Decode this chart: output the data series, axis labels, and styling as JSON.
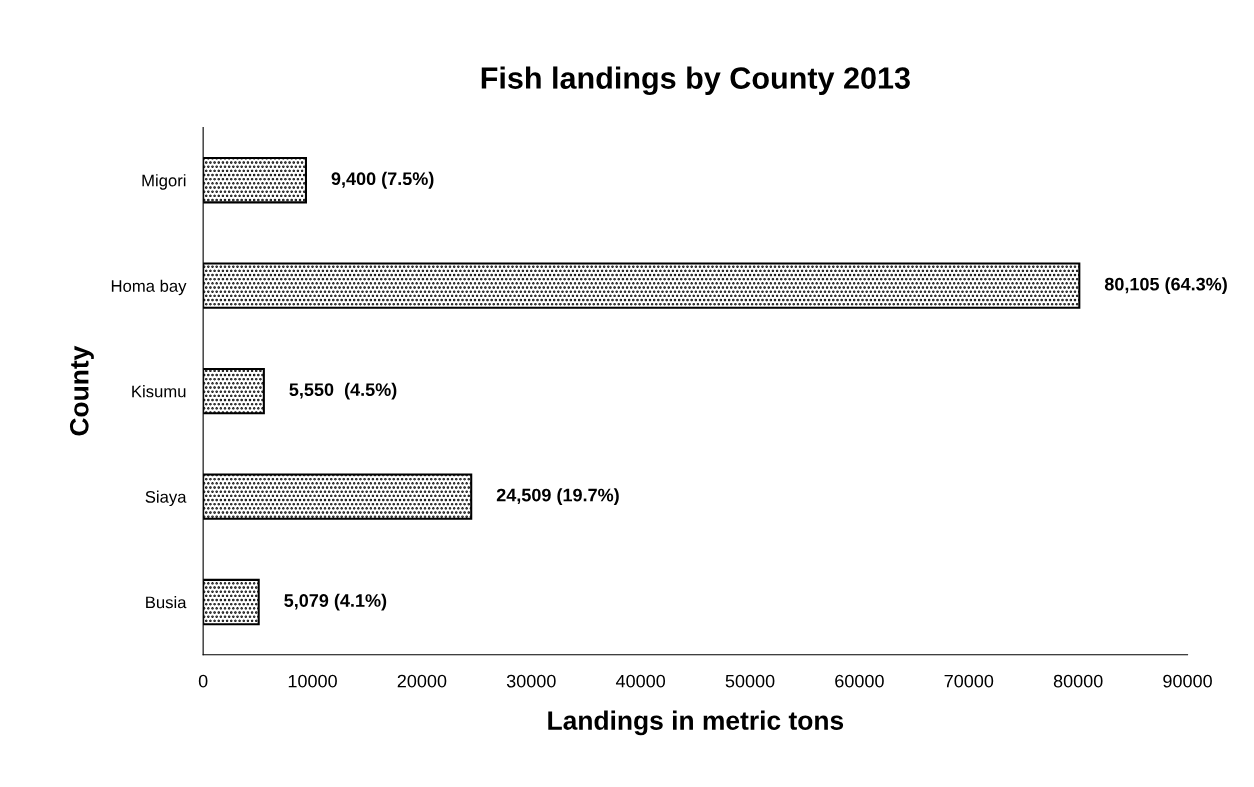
{
  "chart_data": {
    "type": "bar",
    "orientation": "horizontal",
    "title": "Fish landings by County 2013",
    "xlabel": "Landings in metric tons",
    "ylabel": "County",
    "categories": [
      "Migori",
      "Homa bay",
      "Kisumu",
      "Siaya",
      "Busia"
    ],
    "values": [
      9400,
      80105,
      5550,
      24509,
      5079
    ],
    "value_labels": [
      "9,400 (7.5%)",
      "80,105 (64.3%)",
      "5,550  (4.5%)",
      "24,509 (19.7%)",
      "5,079 (4.1%)"
    ],
    "color": "#000000",
    "xlim": [
      0,
      90000
    ],
    "xticks": [
      0,
      10000,
      20000,
      30000,
      40000,
      50000,
      60000,
      70000,
      80000,
      90000
    ],
    "grid": false
  }
}
